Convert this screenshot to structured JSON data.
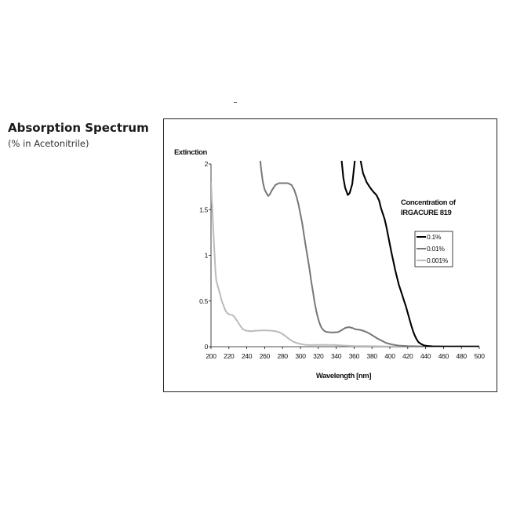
{
  "page": {
    "heading": "Absorption Spectrum",
    "subheading": "(% in Acetonitrile)"
  },
  "chart_data": {
    "type": "line",
    "title": "",
    "xlabel": "Wavelength [nm]",
    "ylabel": "Extinction",
    "xlim": [
      200,
      500
    ],
    "ylim": [
      0,
      2
    ],
    "xticks": [
      200,
      220,
      240,
      260,
      280,
      300,
      320,
      340,
      360,
      380,
      400,
      420,
      440,
      460,
      480,
      500
    ],
    "yticks": [
      0,
      0.5,
      1,
      1.5,
      2
    ],
    "ytick_labels": [
      "0",
      "0.5",
      "1",
      "1.5",
      "2"
    ],
    "grid": false,
    "legend": {
      "title_lines": [
        "Concentration of",
        "IRGACURE 819"
      ],
      "placement": "right"
    },
    "series": [
      {
        "name": "0.1%",
        "color": "#000000",
        "segments": [
          [
            [
              346,
              2.05
            ],
            [
              348,
              1.85
            ],
            [
              350,
              1.74
            ],
            [
              353,
              1.66
            ],
            [
              355,
              1.68
            ],
            [
              358,
              1.78
            ],
            [
              361,
              2.05
            ]
          ],
          [
            [
              367,
              2.05
            ],
            [
              370,
              1.9
            ],
            [
              374,
              1.8
            ],
            [
              378,
              1.74
            ],
            [
              382,
              1.69
            ],
            [
              385,
              1.66
            ],
            [
              388,
              1.6
            ],
            [
              390,
              1.52
            ],
            [
              392,
              1.46
            ],
            [
              394,
              1.4
            ],
            [
              396,
              1.32
            ],
            [
              398,
              1.22
            ],
            [
              400,
              1.12
            ],
            [
              402,
              1.02
            ],
            [
              404,
              0.93
            ],
            [
              406,
              0.84
            ],
            [
              408,
              0.76
            ],
            [
              410,
              0.68
            ],
            [
              412,
              0.62
            ],
            [
              414,
              0.56
            ],
            [
              416,
              0.5
            ],
            [
              418,
              0.44
            ],
            [
              420,
              0.37
            ],
            [
              422,
              0.3
            ],
            [
              424,
              0.23
            ],
            [
              426,
              0.17
            ],
            [
              428,
              0.12
            ],
            [
              430,
              0.08
            ],
            [
              432,
              0.05
            ],
            [
              435,
              0.03
            ],
            [
              438,
              0.015
            ],
            [
              442,
              0.008
            ],
            [
              448,
              0.004
            ],
            [
              460,
              0.002
            ],
            [
              500,
              0.002
            ]
          ]
        ]
      },
      {
        "name": "0.01%",
        "color": "#777777",
        "segments": [
          [
            [
              255,
              2.05
            ],
            [
              256,
              1.95
            ],
            [
              258,
              1.8
            ],
            [
              260,
              1.72
            ],
            [
              262,
              1.68
            ],
            [
              264,
              1.65
            ],
            [
              266,
              1.67
            ],
            [
              268,
              1.71
            ],
            [
              270,
              1.74
            ],
            [
              272,
              1.77
            ],
            [
              276,
              1.79
            ],
            [
              282,
              1.79
            ],
            [
              286,
              1.79
            ],
            [
              290,
              1.77
            ],
            [
              293,
              1.72
            ],
            [
              296,
              1.63
            ],
            [
              298,
              1.55
            ],
            [
              300,
              1.45
            ],
            [
              302,
              1.35
            ],
            [
              304,
              1.22
            ],
            [
              306,
              1.1
            ],
            [
              308,
              0.98
            ],
            [
              310,
              0.86
            ],
            [
              312,
              0.72
            ],
            [
              314,
              0.6
            ],
            [
              316,
              0.48
            ],
            [
              318,
              0.38
            ],
            [
              320,
              0.3
            ],
            [
              322,
              0.24
            ],
            [
              324,
              0.2
            ],
            [
              327,
              0.17
            ],
            [
              330,
              0.16
            ],
            [
              336,
              0.155
            ],
            [
              342,
              0.16
            ],
            [
              346,
              0.18
            ],
            [
              350,
              0.205
            ],
            [
              354,
              0.215
            ],
            [
              358,
              0.205
            ],
            [
              362,
              0.19
            ],
            [
              366,
              0.185
            ],
            [
              370,
              0.175
            ],
            [
              374,
              0.16
            ],
            [
              378,
              0.14
            ],
            [
              382,
              0.115
            ],
            [
              386,
              0.09
            ],
            [
              390,
              0.07
            ],
            [
              395,
              0.045
            ],
            [
              400,
              0.03
            ],
            [
              405,
              0.02
            ],
            [
              410,
              0.012
            ],
            [
              420,
              0.006
            ],
            [
              430,
              0.004
            ],
            [
              440,
              0.003
            ],
            [
              500,
              0.003
            ]
          ]
        ]
      },
      {
        "name": "0.001%",
        "color": "#bbbbbb",
        "segments": [
          [
            [
              200,
              1.8
            ],
            [
              201,
              1.6
            ],
            [
              202,
              1.4
            ],
            [
              203,
              1.2
            ],
            [
              204,
              1.0
            ],
            [
              205,
              0.82
            ],
            [
              206,
              0.72
            ],
            [
              208,
              0.65
            ],
            [
              210,
              0.58
            ],
            [
              212,
              0.5
            ],
            [
              214,
              0.45
            ],
            [
              216,
              0.4
            ],
            [
              218,
              0.37
            ],
            [
              220,
              0.355
            ],
            [
              222,
              0.35
            ],
            [
              224,
              0.345
            ],
            [
              226,
              0.33
            ],
            [
              228,
              0.3
            ],
            [
              230,
              0.27
            ],
            [
              232,
              0.24
            ],
            [
              234,
              0.21
            ],
            [
              236,
              0.19
            ],
            [
              238,
              0.18
            ],
            [
              240,
              0.175
            ],
            [
              244,
              0.17
            ],
            [
              250,
              0.175
            ],
            [
              256,
              0.178
            ],
            [
              262,
              0.178
            ],
            [
              268,
              0.175
            ],
            [
              272,
              0.17
            ],
            [
              276,
              0.16
            ],
            [
              280,
              0.14
            ],
            [
              284,
              0.11
            ],
            [
              288,
              0.08
            ],
            [
              292,
              0.055
            ],
            [
              296,
              0.04
            ],
            [
              300,
              0.03
            ],
            [
              306,
              0.02
            ],
            [
              312,
              0.018
            ],
            [
              318,
              0.02
            ],
            [
              324,
              0.021
            ],
            [
              330,
              0.02
            ],
            [
              336,
              0.019
            ],
            [
              342,
              0.016
            ],
            [
              350,
              0.012
            ],
            [
              360,
              0.008
            ],
            [
              380,
              0.005
            ],
            [
              400,
              0.003
            ],
            [
              440,
              0.002
            ],
            [
              500,
              0.002
            ]
          ]
        ]
      }
    ]
  }
}
